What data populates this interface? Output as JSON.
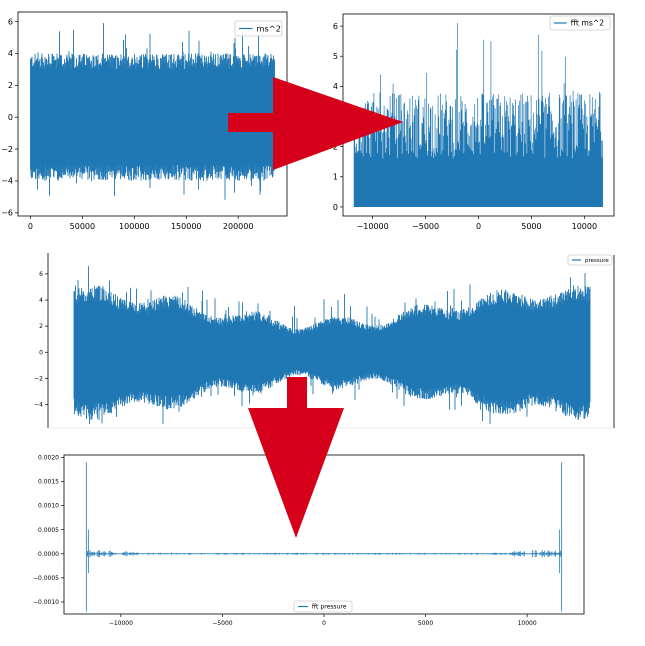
{
  "colors": {
    "series": "#1f77b4",
    "arrow": "#d7001b",
    "axis": "#000000",
    "legend_border": "#cccccc"
  },
  "chart_data": [
    {
      "id": "time-accel",
      "type": "line",
      "legend": [
        "ms^2"
      ],
      "legend_position": "upper right",
      "series": [
        {
          "name": "ms^2",
          "kind": "noise",
          "amplitude_typical": 4.0,
          "amplitude_peak_range": [
            -5.7,
            6.0
          ],
          "x_range": [
            0,
            235000
          ],
          "envelope": "flat"
        }
      ],
      "xlim": [
        -12000,
        247000
      ],
      "ylim": [
        -6.2,
        6.6
      ],
      "xticks": [
        {
          "v": 0,
          "label": "0"
        },
        {
          "v": 50000,
          "label": "50000"
        },
        {
          "v": 100000,
          "label": "100000"
        },
        {
          "v": 150000,
          "label": "150000"
        },
        {
          "v": 200000,
          "label": "200000"
        }
      ],
      "yticks": [
        {
          "v": -6,
          "label": "−6"
        },
        {
          "v": -4,
          "label": "−4"
        },
        {
          "v": -2,
          "label": "−2"
        },
        {
          "v": 0,
          "label": "0"
        },
        {
          "v": 2,
          "label": "2"
        },
        {
          "v": 4,
          "label": "4"
        },
        {
          "v": 6,
          "label": "6"
        }
      ],
      "grid": false
    },
    {
      "id": "fft-accel",
      "type": "line",
      "legend": [
        "fft ms^2"
      ],
      "legend_position": "upper right",
      "series": [
        {
          "name": "fft ms^2",
          "kind": "positive-spectrum",
          "level_typical": 3.0,
          "peak": 6.1,
          "x_range": [
            -11750,
            11750
          ]
        }
      ],
      "xlim": [
        -12800,
        12800
      ],
      "ylim": [
        -0.3,
        6.4
      ],
      "xticks": [
        {
          "v": -10000,
          "label": "−10000"
        },
        {
          "v": -5000,
          "label": "−5000"
        },
        {
          "v": 0,
          "label": "0"
        },
        {
          "v": 5000,
          "label": "5000"
        },
        {
          "v": 10000,
          "label": "10000"
        }
      ],
      "yticks": [
        {
          "v": 0,
          "label": "0"
        },
        {
          "v": 1,
          "label": "1"
        },
        {
          "v": 2,
          "label": "2"
        },
        {
          "v": 3,
          "label": "3"
        },
        {
          "v": 4,
          "label": "4"
        },
        {
          "v": 5,
          "label": "5"
        },
        {
          "v": 6,
          "label": "6"
        }
      ],
      "grid": false
    },
    {
      "id": "time-pressure",
      "type": "line",
      "legend": [
        "pressure"
      ],
      "legend_position": "upper right",
      "series": [
        {
          "name": "pressure",
          "kind": "noise",
          "amplitude_typical": 3.5,
          "amplitude_peak_range": [
            -5.5,
            7.2
          ],
          "envelope": "wavy"
        }
      ],
      "ylim": [
        -5.8,
        7.6
      ],
      "yticks": [
        {
          "v": -4,
          "label": "−4"
        },
        {
          "v": -2,
          "label": "−2"
        },
        {
          "v": 0,
          "label": "0"
        },
        {
          "v": 2,
          "label": "2"
        },
        {
          "v": 4,
          "label": "4"
        },
        {
          "v": 6,
          "label": "6"
        }
      ],
      "grid": false
    },
    {
      "id": "fft-pressure",
      "type": "line",
      "legend": [
        "fft pressure"
      ],
      "legend_position": "lower center",
      "series": [
        {
          "name": "fft pressure",
          "kind": "sparse-spectrum",
          "spike_x": [
            -11700,
            11700
          ],
          "spike_max": 0.0019,
          "spike_min": -0.0012
        }
      ],
      "xlim": [
        -12800,
        12800
      ],
      "ylim": [
        -0.00125,
        0.00205
      ],
      "xticks": [
        {
          "v": -10000,
          "label": "−10000"
        },
        {
          "v": -5000,
          "label": "−5000"
        },
        {
          "v": 0,
          "label": "0"
        },
        {
          "v": 5000,
          "label": "5000"
        },
        {
          "v": 10000,
          "label": "10000"
        }
      ],
      "yticks": [
        {
          "v": -0.001,
          "label": "−0.0010"
        },
        {
          "v": -0.0005,
          "label": "−0.0005"
        },
        {
          "v": 0,
          "label": "0.0000"
        },
        {
          "v": 0.0005,
          "label": "0.0005"
        },
        {
          "v": 0.001,
          "label": "0.0010"
        },
        {
          "v": 0.0015,
          "label": "0.0015"
        },
        {
          "v": 0.002,
          "label": "0.0020"
        }
      ],
      "grid": false
    }
  ],
  "arrows": [
    {
      "name": "right-arrow",
      "direction": "right"
    },
    {
      "name": "down-arrow",
      "direction": "down"
    }
  ]
}
